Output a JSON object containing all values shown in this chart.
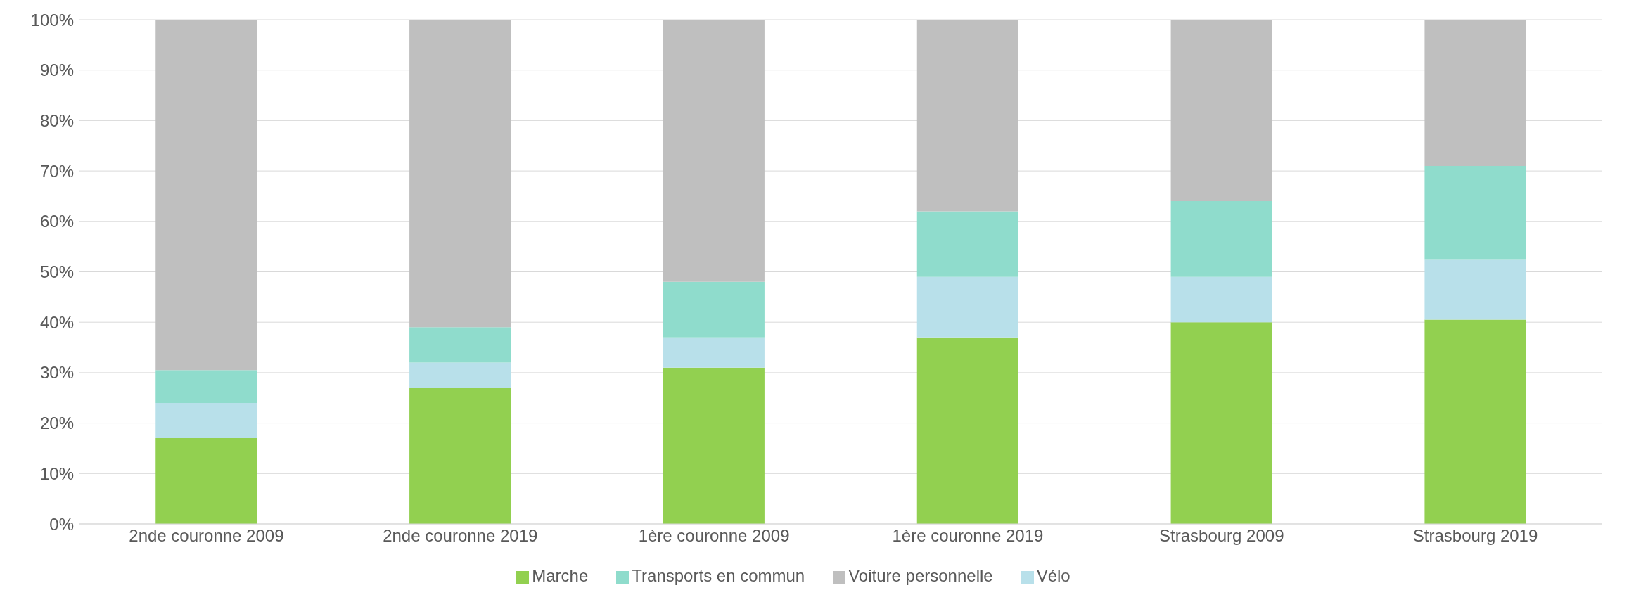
{
  "chart_data": {
    "type": "bar",
    "stacked": true,
    "categories": [
      "2nde couronne 2009",
      "2nde couronne 2019",
      "1ère couronne 2009",
      "1ère couronne 2019",
      "Strasbourg 2009",
      "Strasbourg 2019"
    ],
    "series": [
      {
        "name": "Marche",
        "color": "#92d050",
        "values": [
          17,
          27,
          31,
          37,
          40,
          40.5
        ]
      },
      {
        "name": "Vélo",
        "color": "#b8e0ea",
        "values": [
          7,
          5,
          6,
          12,
          9,
          12
        ]
      },
      {
        "name": "Transports en commun",
        "color": "#8fdccc",
        "values": [
          6.5,
          7,
          11,
          13,
          15,
          18.5
        ]
      },
      {
        "name": "Voiture personnelle",
        "color": "#bfbfbf",
        "values": [
          69.5,
          61,
          52,
          38,
          36,
          29
        ]
      }
    ],
    "ylim": [
      0,
      100
    ],
    "yticks": [
      {
        "value": 0,
        "label": "0%"
      },
      {
        "value": 10,
        "label": "10%"
      },
      {
        "value": 20,
        "label": "20%"
      },
      {
        "value": 30,
        "label": "30%"
      },
      {
        "value": 40,
        "label": "40%"
      },
      {
        "value": 50,
        "label": "50%"
      },
      {
        "value": 60,
        "label": "60%"
      },
      {
        "value": 70,
        "label": "70%"
      },
      {
        "value": 80,
        "label": "80%"
      },
      {
        "value": 90,
        "label": "90%"
      },
      {
        "value": 100,
        "label": "100%"
      }
    ],
    "grid": "y",
    "legend": "bottom"
  }
}
